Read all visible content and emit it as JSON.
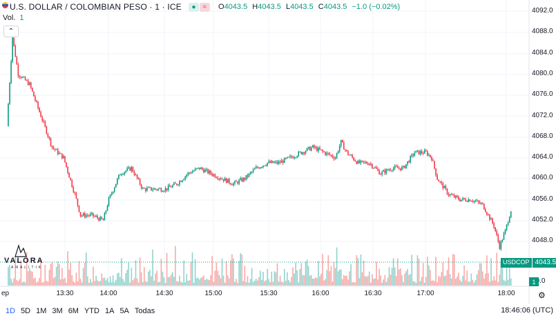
{
  "header": {
    "title": "U.S. DOLLAR / COLOMBIAN PESO · 1 · ICE",
    "ohlc": [
      {
        "k": "O",
        "v": "4043.5"
      },
      {
        "k": "H",
        "v": "4043.5"
      },
      {
        "k": "L",
        "v": "4043.5"
      },
      {
        "k": "C",
        "v": "4043.5"
      }
    ],
    "change": "−1.0 (−0.02%)",
    "vol_label": "Vol.",
    "vol_value": "1"
  },
  "price_axis": {
    "labels": [
      "4092.0",
      "4088.0",
      "4084.0",
      "4080.0",
      "4076.0",
      "4072.0",
      "4068.0",
      "4064.0",
      "4060.0",
      "4056.0",
      "4052.0",
      "4048.0",
      "40.0"
    ]
  },
  "time_axis": {
    "labels": [
      "ep",
      "13:30",
      "14:00",
      "14:30",
      "15:00",
      "15:30",
      "16:00",
      "16:30",
      "17:00",
      "18:00"
    ]
  },
  "badges": {
    "ticker": "USDCOP",
    "last_price": "4043.5",
    "volume": "1"
  },
  "watermark": {
    "text": "VALORA",
    "sub": "ANALITIK"
  },
  "bottom_bar": {
    "ranges": [
      "1D",
      "5D",
      "1M",
      "3M",
      "6M",
      "YTD",
      "1A",
      "5A",
      "Todas"
    ],
    "active_range": "1D",
    "clock": "18:46:06 (UTC)"
  },
  "colors": {
    "up": "#089981",
    "down": "#f23645",
    "grid": "#f0f3fa",
    "vol_up": "#92d2cc",
    "vol_down": "#f7a9a7"
  },
  "chart_data": {
    "type": "candlestick",
    "y_range": [
      4040,
      4093
    ],
    "x_labels": [
      "13:30",
      "14:00",
      "14:30",
      "15:00",
      "15:30",
      "16:00",
      "16:30",
      "17:00",
      "18:00"
    ],
    "approx_close_path": [
      [
        0,
        4070
      ],
      [
        1,
        4087
      ],
      [
        2,
        4080
      ],
      [
        4,
        4078
      ],
      [
        6,
        4072
      ],
      [
        8,
        4066
      ],
      [
        10,
        4064
      ],
      [
        12,
        4057
      ],
      [
        13,
        4053
      ],
      [
        15,
        4053
      ],
      [
        17,
        4052
      ],
      [
        18,
        4056
      ],
      [
        20,
        4061
      ],
      [
        22,
        4062
      ],
      [
        24,
        4058
      ],
      [
        26,
        4058
      ],
      [
        28,
        4058
      ],
      [
        30,
        4059
      ],
      [
        32,
        4061
      ],
      [
        34,
        4062
      ],
      [
        36,
        4061
      ],
      [
        38,
        4060
      ],
      [
        40,
        4059
      ],
      [
        42,
        4060
      ],
      [
        44,
        4062
      ],
      [
        46,
        4063
      ],
      [
        48,
        4063
      ],
      [
        50,
        4064
      ],
      [
        52,
        4065
      ],
      [
        54,
        4066
      ],
      [
        56,
        4065
      ],
      [
        58,
        4064
      ],
      [
        59,
        4067
      ],
      [
        60,
        4065
      ],
      [
        62,
        4063
      ],
      [
        64,
        4063
      ],
      [
        66,
        4061
      ],
      [
        68,
        4062
      ],
      [
        70,
        4062
      ],
      [
        72,
        4065
      ],
      [
        74,
        4065
      ],
      [
        75,
        4064
      ],
      [
        76,
        4060
      ],
      [
        78,
        4057
      ],
      [
        80,
        4056
      ],
      [
        82,
        4056
      ],
      [
        84,
        4055
      ],
      [
        86,
        4051
      ],
      [
        87,
        4047
      ],
      [
        88,
        4050
      ],
      [
        89,
        4054
      ]
    ],
    "volume_scale_note": "relative bar heights"
  }
}
